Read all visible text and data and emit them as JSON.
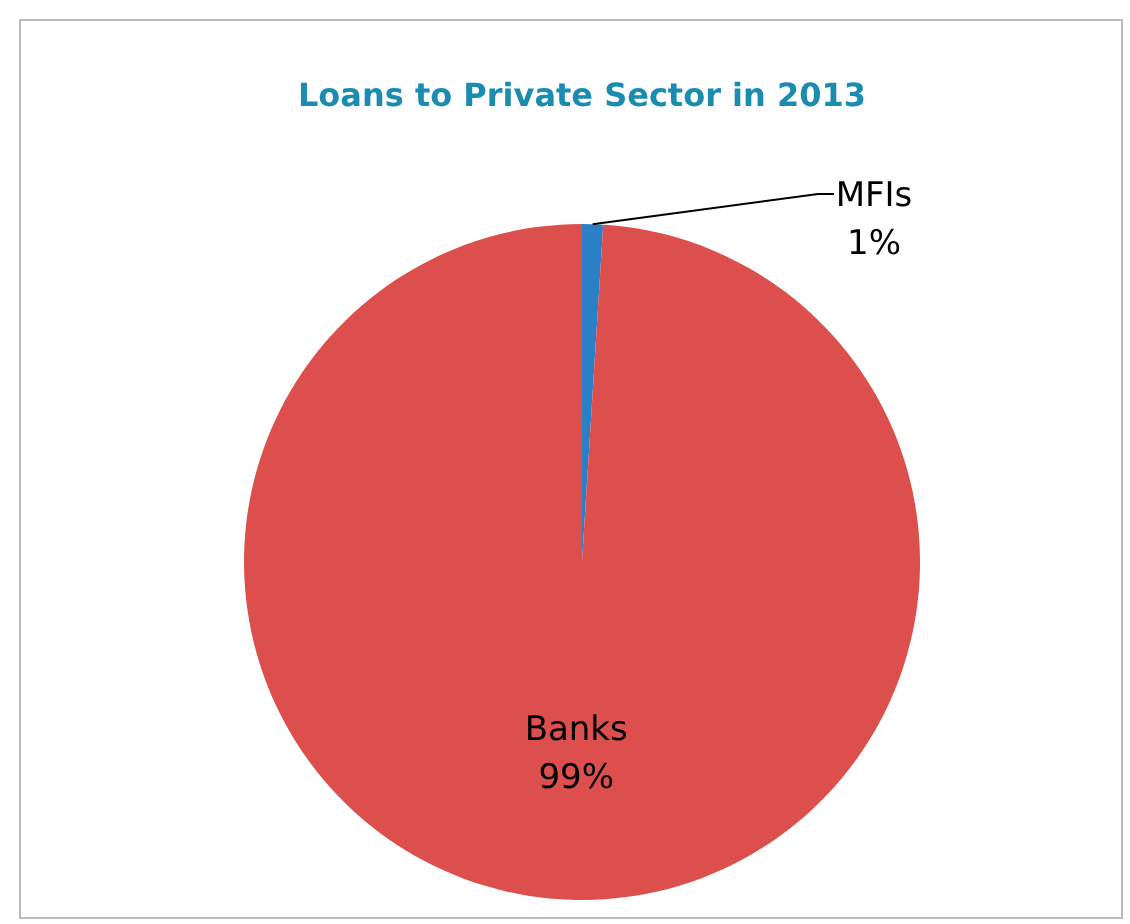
{
  "chart_data": {
    "type": "pie",
    "title": "Loans to Private Sector in 2013",
    "categories": [
      "MFIs",
      "Banks"
    ],
    "values": [
      1,
      99
    ],
    "colors": [
      "#2a7fc7",
      "#dc4f4c"
    ],
    "value_labels": [
      "1%",
      "99%"
    ]
  }
}
